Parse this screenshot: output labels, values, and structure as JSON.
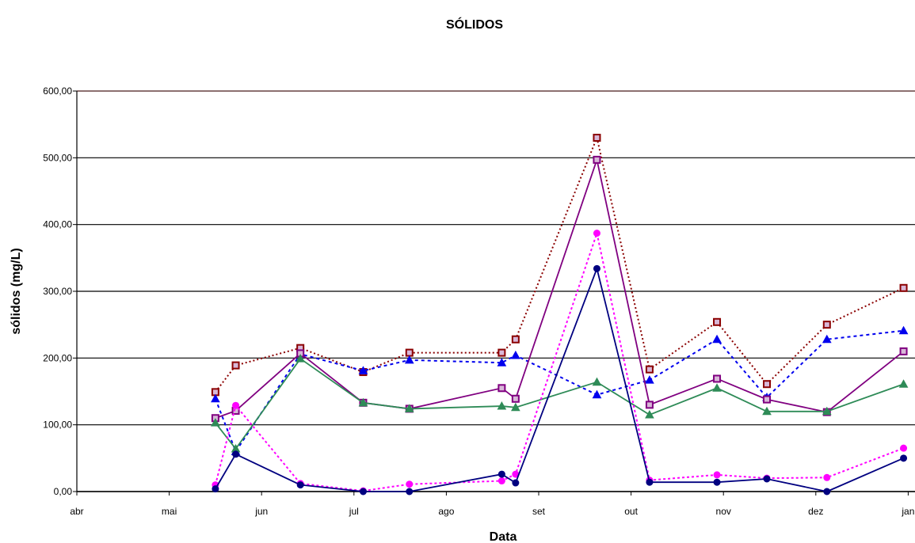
{
  "chart_data": {
    "type": "line",
    "title": "SÓLIDOS",
    "xlabel": "Data",
    "ylabel": "sólidos (mg/L)",
    "ylim": [
      0,
      600
    ],
    "yticks": [
      "0,00",
      "100,00",
      "200,00",
      "300,00",
      "400,00",
      "500,00",
      "600,00"
    ],
    "xticks": [
      "abr",
      "mai",
      "jun",
      "jul",
      "ago",
      "set",
      "out",
      "nov",
      "dez",
      "jan"
    ],
    "x_domain": [
      0,
      9
    ],
    "grid": true,
    "legend": "none",
    "series": [
      {
        "color": "#8b0000",
        "marker": "square-open",
        "dash": "2,3",
        "x": [
          1.5,
          1.72,
          2.42,
          3.1,
          3.6,
          4.6,
          4.75,
          5.63,
          6.2,
          6.93,
          7.47,
          8.12,
          8.95
        ],
        "values": [
          149,
          189,
          215,
          179,
          208,
          208,
          228,
          530,
          183,
          254,
          161,
          250,
          305
        ]
      },
      {
        "color": "#0000ee",
        "marker": "triangle",
        "dash": "4,4",
        "x": [
          1.5,
          1.72,
          2.42,
          3.1,
          3.6,
          4.6,
          4.75,
          5.63,
          6.2,
          6.93,
          7.47,
          8.12,
          8.95
        ],
        "values": [
          139,
          60,
          206,
          181,
          197,
          193,
          204,
          145,
          167,
          228,
          141,
          228,
          241
        ]
      },
      {
        "color": "#800080",
        "marker": "square-open",
        "dash": "",
        "x": [
          1.5,
          1.72,
          2.42,
          3.1,
          3.6,
          4.6,
          4.75,
          5.63,
          6.2,
          6.93,
          7.47,
          8.12,
          8.95
        ],
        "values": [
          110,
          121,
          207,
          133,
          124,
          155,
          139,
          497,
          130,
          169,
          138,
          119,
          210
        ]
      },
      {
        "color": "#2e8b57",
        "marker": "triangle",
        "dash": "",
        "x": [
          1.5,
          1.72,
          2.42,
          3.1,
          3.6,
          4.6,
          4.75,
          5.63,
          6.2,
          6.93,
          7.47,
          8.12,
          8.95
        ],
        "values": [
          103,
          64,
          199,
          133,
          124,
          128,
          126,
          164,
          115,
          155,
          120,
          120,
          161
        ]
      },
      {
        "color": "#ff00ff",
        "marker": "circle",
        "dash": "3,3",
        "x": [
          1.5,
          1.72,
          2.42,
          3.1,
          3.6,
          4.6,
          4.75,
          5.63,
          6.2,
          6.93,
          7.47,
          8.12,
          8.95
        ],
        "values": [
          10,
          129,
          12,
          1,
          11,
          16,
          26,
          387,
          17,
          25,
          20,
          21,
          65
        ]
      },
      {
        "color": "#000080",
        "marker": "circle",
        "dash": "",
        "x": [
          1.5,
          1.72,
          2.42,
          3.1,
          3.6,
          4.6,
          4.75,
          5.63,
          6.2,
          6.93,
          7.47,
          8.12,
          8.95
        ],
        "values": [
          4,
          56,
          10,
          0,
          0,
          26,
          13,
          334,
          14,
          14,
          19,
          0,
          50
        ]
      }
    ]
  }
}
